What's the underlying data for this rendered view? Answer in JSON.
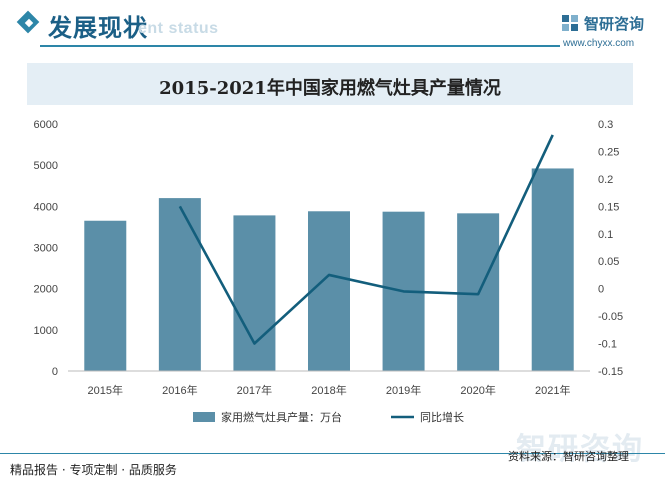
{
  "header": {
    "section_title": "发展现状",
    "section_subtitle": "ent status",
    "brand_name": "智研咨询",
    "brand_url": "www.chyxx.com"
  },
  "chart_data": {
    "type": "bar",
    "title": "2015-2021年中国家用燃气灶具产量情况",
    "categories": [
      "2015年",
      "2016年",
      "2017年",
      "2018年",
      "2019年",
      "2020年",
      "2021年"
    ],
    "series": [
      {
        "name": "家用燃气灶具产量：万台",
        "type": "bar",
        "axis": "left",
        "values": [
          3650,
          4200,
          3780,
          3880,
          3870,
          3830,
          4920
        ]
      },
      {
        "name": "同比增长",
        "type": "line",
        "axis": "right",
        "values": [
          null,
          0.15,
          -0.1,
          0.025,
          -0.005,
          -0.01,
          0.28
        ]
      }
    ],
    "y_left": {
      "min": 0,
      "max": 6000,
      "ticks": [
        0,
        1000,
        2000,
        3000,
        4000,
        5000,
        6000
      ]
    },
    "y_right": {
      "min": -0.15,
      "max": 0.3,
      "ticks": [
        "-0.15",
        "-0.1",
        "-0.05",
        "0",
        "0.05",
        "0.1",
        "0.15",
        "0.2",
        "0.25",
        "0.3"
      ]
    },
    "grid": false,
    "legend": "bottom",
    "colors": {
      "bar": "#5b8fa8",
      "line": "#135e7c"
    }
  },
  "footer": {
    "left": "精品报告 · 专项定制 · 品质服务",
    "source": "资料来源：智研咨询整理",
    "watermark": "智研咨询"
  }
}
